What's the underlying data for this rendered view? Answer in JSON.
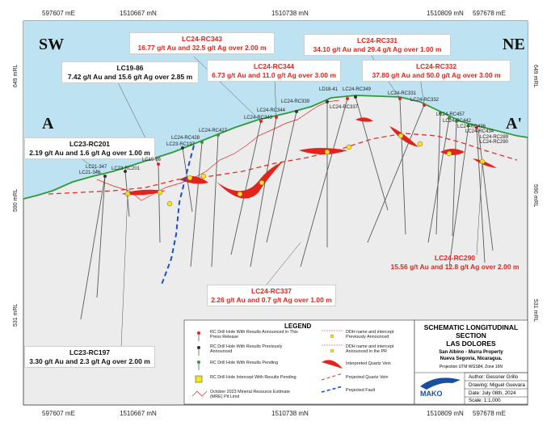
{
  "axis": {
    "top_coords": [
      "597607 mE",
      "1510667 mN",
      "1510738 mN",
      "1510809 mN",
      "597678 mE"
    ],
    "bottom_coords": [
      "597607 mE",
      "1510667 mN",
      "1510738 mN",
      "1510809 mN",
      "597678 mE"
    ],
    "left_elev": [
      "649 mRL",
      "590 mRL",
      "531 mRL"
    ],
    "right_elev": [
      "649 mRL",
      "590 mRL",
      "531 mRL"
    ]
  },
  "directions": {
    "sw": "SW",
    "ne": "NE",
    "a": "A",
    "a_prime": "A'"
  },
  "callouts": {
    "lc24_rc343": {
      "id": "LC24-RC343",
      "text": "16.77 g/t Au and 32.5 g/t Ag over 2.00 m"
    },
    "lc24_rc331": {
      "id": "LC24-RC331",
      "text": "34.10 g/t Au and 29.4 g/t Ag over 1.00 m"
    },
    "lc19_86": {
      "id": "LC19-86",
      "text": "7.42 g/t Au and 15.6 g/t Ag over 2.85 m"
    },
    "lc24_rc344": {
      "id": "LC24-RC344",
      "text": "6.73 g/t Au and 11.0 g/t Ag over 3.00 m"
    },
    "lc24_rc332": {
      "id": "LC24-RC332",
      "text": "37.80 g/t Au and 50.0 g/t Ag over 3.00 m"
    },
    "lc23_rc201": {
      "id": "LC23-RC201",
      "text": "2.19 g/t Au and 1.6 g/t Ag over 1.00 m"
    },
    "lc24_rc290": {
      "id": "LC24-RC290",
      "text": "15.56 g/t Au and 12.8 g/t Ag over 2.00 m"
    },
    "lc24_rc337": {
      "id": "LC24-RC337",
      "text": "2.26 g/t Au and 0.7 g/t Ag over 1.00 m"
    },
    "lc23_rc197": {
      "id": "LC23-RC197",
      "text": "3.30 g/t Au and 2.3 g/t Ag over 2.00 m"
    }
  },
  "hole_labels": {
    "lc21_347": "LC21-347",
    "lc21_346": "LC21-346",
    "lc23_rc201": "LC23-RC201",
    "lc19_86": "LC19-86",
    "lc23_rc197": "LC23-RC197",
    "lc24_rc428": "LC24-RC428",
    "lc24_rc427": "LC24-RC427",
    "lc24_rc343": "LC24-RC343",
    "lc24_rc344": "LC24-RC344",
    "lc24_rc339": "LC24-RC339",
    "ld18_41": "LD18-41",
    "lc24_rc349": "LC24-RC349",
    "lc24_rc337": "LC24-RC337",
    "lc24_rc331": "LC24-RC331",
    "lc24_rc332": "LC24-RC332",
    "lc24_rc457": "LC24-RC457",
    "lc24_rc442": "LC24-RC442",
    "lc24_rc436": "LC24-RC436",
    "lc24_rc434": "LC24-RC434",
    "lc24_rc289": "LC24-RC289",
    "lc24_rc290": "LC24-RC290"
  },
  "legend": {
    "title": "LEGEND",
    "items_left": [
      "RC Drill Hole With Results Announced in This Press Release",
      "RC Drill Hole With Results Previously Announced",
      "RC Drill Hole With Results Pending",
      "RC Drill Hole Intercept With Results Pending",
      "October 2023 Mineral Resource Estimate (MRE) Pit Limit"
    ],
    "items_right": [
      "DDH name and intercept Previously Announced",
      "DDH name and intercept Announced in the PR",
      "Interpreted Quartz Vein",
      "Projected Quartz Vein",
      "Projected Fault"
    ]
  },
  "title_block": {
    "title_line1": "SCHEMATIC LONGITUDINAL",
    "title_line2": "SECTION",
    "title_line3": "LAS DOLORES",
    "property_line1": "San Albino - Murra Property",
    "property_line2": "Nueva Segovia, Nicaragua.",
    "projection": "Projection UTM WGS84, Zone 16N",
    "logo": "MAKO",
    "author": "Author: Gessner Grillo",
    "drawing": "Drawing: Miguel Guevara",
    "date": "Date: July 08th, 2024",
    "scale": "Scale: 1:1,000"
  },
  "colors": {
    "sky": "#bde3f2",
    "ground": "#ececec",
    "topo": "#2f9a3a",
    "vein": "#e3241b",
    "fault": "#1a4fd0",
    "hole": "#5a5a5a"
  }
}
